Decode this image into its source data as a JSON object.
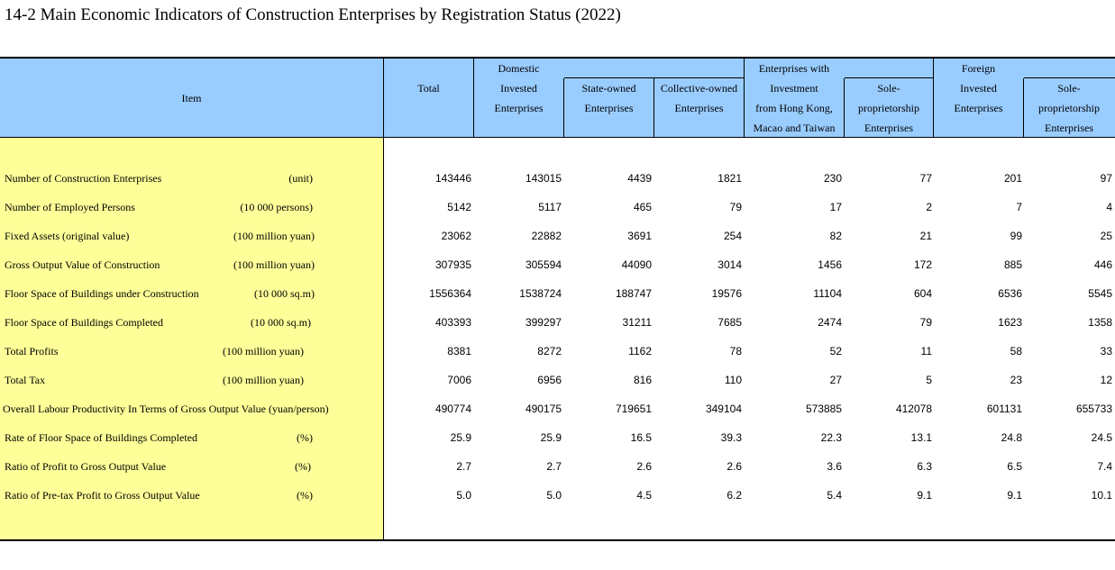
{
  "title": "14-2  Main Economic Indicators of Construction Enterprises by Registration Status (2022)",
  "headers": {
    "item": "Item",
    "total": "Total",
    "domestic": [
      "Domestic",
      "Invested",
      "Enterprises"
    ],
    "state_owned": [
      "State-owned",
      "Enterprises"
    ],
    "collective_owned": [
      "Collective-owned",
      "Enterprises"
    ],
    "hk_group": [
      "Enterprises with",
      "Investment",
      "from Hong Kong,",
      "Macao and Taiwan"
    ],
    "hk_sole": [
      "Sole-",
      "proprietorship",
      "Enterprises"
    ],
    "foreign": [
      "Foreign",
      "Invested",
      "Enterprises"
    ],
    "foreign_sole": [
      "Sole-",
      "proprietorship",
      "Enterprises"
    ]
  },
  "rows": [
    {
      "label": "Number of Construction Enterprises",
      "unit": "(unit)",
      "values": [
        "143446",
        "143015",
        "4439",
        "1821",
        "230",
        "77",
        "201",
        "97"
      ]
    },
    {
      "label": "Number of Employed Persons",
      "unit": "(10 000 persons)",
      "values": [
        "5142",
        "5117",
        "465",
        "79",
        "17",
        "2",
        "7",
        "4"
      ]
    },
    {
      "label": "Fixed Assets (original value)",
      "unit": "(100 million yuan)",
      "values": [
        "23062",
        "22882",
        "3691",
        "254",
        "82",
        "21",
        "99",
        "25"
      ]
    },
    {
      "label": "Gross Output Value of Construction",
      "unit": "(100 million yuan)",
      "values": [
        "307935",
        "305594",
        "44090",
        "3014",
        "1456",
        "172",
        "885",
        "446"
      ]
    },
    {
      "label": "Floor Space of Buildings under Construction",
      "unit": "(10 000 sq.m)",
      "values": [
        "1556364",
        "1538724",
        "188747",
        "19576",
        "11104",
        "604",
        "6536",
        "5545"
      ]
    },
    {
      "label": "Floor Space of Buildings Completed",
      "unit": "(10 000 sq.m)",
      "values": [
        "403393",
        "399297",
        "31211",
        "7685",
        "2474",
        "79",
        "1623",
        "1358"
      ]
    },
    {
      "label": "Total Profits",
      "unit": "(100 million yuan)",
      "values": [
        "8381",
        "8272",
        "1162",
        "78",
        "52",
        "11",
        "58",
        "33"
      ]
    },
    {
      "label": "Total Tax",
      "unit": "(100 million yuan)",
      "values": [
        "7006",
        "6956",
        "816",
        "110",
        "27",
        "5",
        "23",
        "12"
      ]
    },
    {
      "label": "Overall Labour Productivity In Terms of Gross Output Value (yuan/person)",
      "unit": "",
      "values": [
        "490774",
        "490175",
        "719651",
        "349104",
        "573885",
        "412078",
        "601131",
        "655733"
      ]
    },
    {
      "label": "Rate of Floor Space of Buildings Completed",
      "unit": "(%)",
      "values": [
        "25.9",
        "25.9",
        "16.5",
        "39.3",
        "22.3",
        "13.1",
        "24.8",
        "24.5"
      ]
    },
    {
      "label": "Ratio of Profit to Gross Output Value",
      "unit": "(%)",
      "values": [
        "2.7",
        "2.7",
        "2.6",
        "2.6",
        "3.6",
        "6.3",
        "6.5",
        "7.4"
      ]
    },
    {
      "label": "Ratio of Pre-tax Profit to Gross Output Value",
      "unit": "(%)",
      "values": [
        "5.0",
        "5.0",
        "4.5",
        "6.2",
        "5.4",
        "9.1",
        "9.1",
        "10.1"
      ]
    }
  ],
  "colors": {
    "header_bg": "#99ccff",
    "item_bg": "#ffff99"
  }
}
